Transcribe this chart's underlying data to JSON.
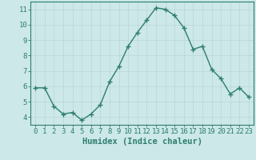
{
  "x": [
    0,
    1,
    2,
    3,
    4,
    5,
    6,
    7,
    8,
    9,
    10,
    11,
    12,
    13,
    14,
    15,
    16,
    17,
    18,
    19,
    20,
    21,
    22,
    23
  ],
  "y": [
    5.9,
    5.9,
    4.7,
    4.2,
    4.3,
    3.8,
    4.2,
    4.8,
    6.3,
    7.3,
    8.6,
    9.5,
    10.3,
    11.1,
    11.0,
    10.6,
    9.8,
    8.4,
    8.6,
    7.1,
    6.5,
    5.5,
    5.9,
    5.3
  ],
  "line_color": "#2e7d70",
  "marker": "+",
  "marker_size": 4,
  "bg_color": "#cce8e8",
  "grid_color": "#b8d4d4",
  "xlabel": "Humidex (Indice chaleur)",
  "xlim": [
    -0.5,
    23.5
  ],
  "ylim": [
    3.5,
    11.5
  ],
  "yticks": [
    4,
    5,
    6,
    7,
    8,
    9,
    10,
    11
  ],
  "xticks": [
    0,
    1,
    2,
    3,
    4,
    5,
    6,
    7,
    8,
    9,
    10,
    11,
    12,
    13,
    14,
    15,
    16,
    17,
    18,
    19,
    20,
    21,
    22,
    23
  ],
  "tick_color": "#2e7d70",
  "label_color": "#2e7d70",
  "xlabel_fontsize": 7.5,
  "tick_fontsize": 6.5,
  "linewidth": 1.0,
  "marker_lw": 1.0
}
